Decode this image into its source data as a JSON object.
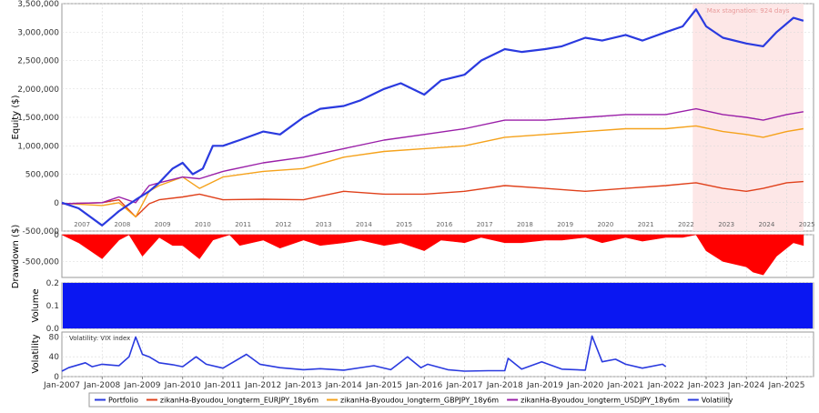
{
  "chart_data": [
    {
      "type": "line",
      "panel": "equity",
      "ylabel": "Equity ($)",
      "ylim": [
        -500000,
        3500000
      ],
      "yticks": [
        -500000,
        0,
        500000,
        1000000,
        1500000,
        2000000,
        2500000,
        3000000,
        3500000
      ],
      "ytick_labels": [
        "-500,000",
        "0",
        "500,000",
        "1,000,000",
        "1,500,000",
        "2,000,000",
        "2,500,000",
        "3,000,000",
        "3,500,000"
      ],
      "year_labels": [
        "2007",
        "2008",
        "2009",
        "2010",
        "2011",
        "2012",
        "2013",
        "2014",
        "2015",
        "2016",
        "2017",
        "2018",
        "2019",
        "2020",
        "2021",
        "2022",
        "2023",
        "2024",
        "2025"
      ],
      "grid": true,
      "annotation": {
        "text": "Max stagnation: 924 days",
        "start": "2022-09",
        "end": "2025-06",
        "color": "#fde4e4"
      },
      "series": [
        {
          "name": "Portfolio",
          "color": "#2a3adf",
          "x": [
            "2007-01",
            "2007-06",
            "2008-01",
            "2008-06",
            "2008-11",
            "2009-03",
            "2009-06",
            "2009-10",
            "2010-01",
            "2010-04",
            "2010-07",
            "2010-10",
            "2011-01",
            "2011-06",
            "2012-01",
            "2012-06",
            "2013-01",
            "2013-06",
            "2014-01",
            "2014-06",
            "2015-01",
            "2015-06",
            "2016-01",
            "2016-06",
            "2017-01",
            "2017-06",
            "2018-01",
            "2018-06",
            "2019-01",
            "2019-06",
            "2020-01",
            "2020-06",
            "2021-01",
            "2021-06",
            "2022-01",
            "2022-06",
            "2022-10",
            "2023-01",
            "2023-06",
            "2024-01",
            "2024-06",
            "2024-10",
            "2025-03",
            "2025-06"
          ],
          "y": [
            0,
            -100000,
            -400000,
            -150000,
            50000,
            200000,
            350000,
            600000,
            700000,
            500000,
            600000,
            1000000,
            1000000,
            1100000,
            1250000,
            1200000,
            1500000,
            1650000,
            1700000,
            1800000,
            2000000,
            2100000,
            1900000,
            2150000,
            2250000,
            2500000,
            2700000,
            2650000,
            2700000,
            2750000,
            2900000,
            2850000,
            2950000,
            2850000,
            3000000,
            3100000,
            3400000,
            3100000,
            2900000,
            2800000,
            2750000,
            3000000,
            3250000,
            3200000
          ]
        },
        {
          "name": "zikanHa-Byoudou_longterm_EURJPY_18y6m",
          "color": "#e0401a",
          "x": [
            "2007-01",
            "2008-01",
            "2008-06",
            "2008-11",
            "2009-03",
            "2009-06",
            "2010-01",
            "2010-06",
            "2011-01",
            "2012-01",
            "2013-01",
            "2014-01",
            "2015-01",
            "2016-01",
            "2017-01",
            "2018-01",
            "2019-01",
            "2020-01",
            "2021-01",
            "2022-01",
            "2022-10",
            "2023-06",
            "2024-01",
            "2024-06",
            "2025-01",
            "2025-06"
          ],
          "y": [
            -20000,
            0,
            50000,
            -250000,
            -20000,
            50000,
            100000,
            150000,
            50000,
            60000,
            50000,
            200000,
            150000,
            150000,
            200000,
            300000,
            250000,
            200000,
            250000,
            300000,
            350000,
            250000,
            200000,
            250000,
            350000,
            370000
          ]
        },
        {
          "name": "zikanHa-Byoudou_longterm_GBPJPY_18y6m",
          "color": "#f5a21b",
          "x": [
            "2007-01",
            "2008-01",
            "2008-06",
            "2008-11",
            "2009-03",
            "2009-06",
            "2010-01",
            "2010-06",
            "2011-01",
            "2012-01",
            "2013-01",
            "2014-01",
            "2015-01",
            "2016-01",
            "2017-01",
            "2018-01",
            "2019-01",
            "2020-01",
            "2021-01",
            "2022-01",
            "2022-10",
            "2023-06",
            "2024-01",
            "2024-06",
            "2025-01",
            "2025-06"
          ],
          "y": [
            -10000,
            -50000,
            0,
            -250000,
            200000,
            300000,
            450000,
            250000,
            450000,
            550000,
            600000,
            800000,
            900000,
            950000,
            1000000,
            1150000,
            1200000,
            1250000,
            1300000,
            1300000,
            1350000,
            1250000,
            1200000,
            1150000,
            1250000,
            1300000
          ]
        },
        {
          "name": "zikanHa-Byoudou_longterm_USDJPY_18y6m",
          "color": "#9a1fa8",
          "x": [
            "2007-01",
            "2008-01",
            "2008-06",
            "2008-11",
            "2009-03",
            "2009-06",
            "2010-01",
            "2010-06",
            "2011-01",
            "2012-01",
            "2013-01",
            "2014-01",
            "2015-01",
            "2016-01",
            "2017-01",
            "2018-01",
            "2019-01",
            "2020-01",
            "2021-01",
            "2022-01",
            "2022-10",
            "2023-06",
            "2024-01",
            "2024-06",
            "2025-01",
            "2025-06"
          ],
          "y": [
            -20000,
            0,
            100000,
            0,
            300000,
            350000,
            450000,
            420000,
            550000,
            700000,
            800000,
            950000,
            1100000,
            1200000,
            1300000,
            1450000,
            1450000,
            1500000,
            1550000,
            1550000,
            1650000,
            1550000,
            1500000,
            1450000,
            1550000,
            1600000
          ]
        }
      ]
    },
    {
      "type": "area",
      "panel": "drawdown",
      "ylabel": "Drawdown ($)",
      "ylim": [
        -800000,
        0
      ],
      "yticks": [
        0,
        -500000
      ],
      "ytick_labels": [
        "0",
        "-500,000"
      ],
      "series": [
        {
          "name": "Drawdown",
          "color": "#ff0000",
          "x": [
            "2007-01",
            "2007-06",
            "2008-01",
            "2008-06",
            "2008-09",
            "2009-01",
            "2009-06",
            "2009-10",
            "2010-01",
            "2010-06",
            "2010-10",
            "2011-03",
            "2011-06",
            "2012-01",
            "2012-06",
            "2013-01",
            "2013-06",
            "2014-01",
            "2014-06",
            "2015-01",
            "2015-06",
            "2016-01",
            "2016-06",
            "2017-01",
            "2017-06",
            "2018-01",
            "2018-06",
            "2019-01",
            "2019-06",
            "2020-01",
            "2020-06",
            "2021-01",
            "2021-06",
            "2022-01",
            "2022-06",
            "2022-10",
            "2023-01",
            "2023-06",
            "2024-01",
            "2024-03",
            "2024-06",
            "2024-10",
            "2025-03",
            "2025-06"
          ],
          "y": [
            0,
            -150000,
            -450000,
            -100000,
            0,
            -400000,
            -50000,
            -200000,
            -200000,
            -450000,
            -100000,
            0,
            -200000,
            -100000,
            -250000,
            -100000,
            -200000,
            -150000,
            -100000,
            -200000,
            -150000,
            -300000,
            -100000,
            -150000,
            -50000,
            -150000,
            -150000,
            -100000,
            -100000,
            -50000,
            -150000,
            -50000,
            -120000,
            -50000,
            -50000,
            0,
            -300000,
            -500000,
            -600000,
            -700000,
            -750000,
            -400000,
            -150000,
            -200000
          ]
        }
      ]
    },
    {
      "type": "bar",
      "panel": "volume",
      "ylabel": "Volume",
      "ylim": [
        0,
        0.2
      ],
      "yticks": [
        0.0,
        0.1,
        0.2
      ],
      "ytick_labels": [
        "0.0",
        "0.1",
        "0.2"
      ],
      "series": [
        {
          "name": "Volume",
          "color": "#0a17f2",
          "value": 0.2
        }
      ]
    },
    {
      "type": "line",
      "panel": "volatility",
      "ylabel": "Volatility",
      "ylim": [
        0,
        90
      ],
      "yticks": [
        0,
        40,
        80
      ],
      "ytick_labels": [
        "0",
        "40",
        "80"
      ],
      "annotation": {
        "text": "Volatility: VIX index"
      },
      "xtick_labels": [
        "Jan-2007",
        "Jan-2008",
        "Jan-2009",
        "Jan-2010",
        "Jan-2011",
        "Jan-2012",
        "Jan-2013",
        "Jan-2014",
        "Jan-2015",
        "Jan-2016",
        "Jan-2017",
        "Jan-2018",
        "Jan-2019",
        "Jan-2020",
        "Jan-2021",
        "Jan-2022",
        "Jan-2023",
        "Jan-2024",
        "Jan-2025"
      ],
      "series": [
        {
          "name": "Volatility",
          "color": "#2a3adf",
          "x": [
            "2007-01",
            "2007-03",
            "2007-08",
            "2007-10",
            "2008-01",
            "2008-06",
            "2008-09",
            "2008-11",
            "2009-01",
            "2009-03",
            "2009-06",
            "2009-10",
            "2010-01",
            "2010-05",
            "2010-08",
            "2011-01",
            "2011-08",
            "2011-12",
            "2012-06",
            "2013-01",
            "2013-06",
            "2014-01",
            "2014-10",
            "2015-03",
            "2015-08",
            "2015-12",
            "2016-02",
            "2016-08",
            "2017-01",
            "2017-08",
            "2018-01",
            "2018-02",
            "2018-06",
            "2018-12",
            "2019-06",
            "2020-01",
            "2020-03",
            "2020-06",
            "2020-10",
            "2021-01",
            "2021-06",
            "2021-12",
            "2022-01"
          ],
          "y": [
            11,
            18,
            28,
            20,
            25,
            22,
            40,
            80,
            45,
            40,
            28,
            24,
            20,
            40,
            25,
            17,
            45,
            25,
            18,
            14,
            16,
            13,
            22,
            14,
            40,
            18,
            25,
            14,
            11,
            12,
            12,
            37,
            15,
            30,
            15,
            13,
            82,
            30,
            35,
            25,
            17,
            25,
            20
          ]
        }
      ]
    }
  ],
  "legend": {
    "items": [
      {
        "label": "Portfolio",
        "color": "#2a3adf"
      },
      {
        "label": "zikanHa-Byoudou_longterm_EURJPY_18y6m",
        "color": "#e0401a"
      },
      {
        "label": "zikanHa-Byoudou_longterm_GBPJPY_18y6m",
        "color": "#f5a21b"
      },
      {
        "label": "zikanHa-Byoudou_longterm_USDJPY_18y6m",
        "color": "#9a1fa8"
      },
      {
        "label": "Volatility",
        "color": "#2a3adf"
      }
    ]
  }
}
